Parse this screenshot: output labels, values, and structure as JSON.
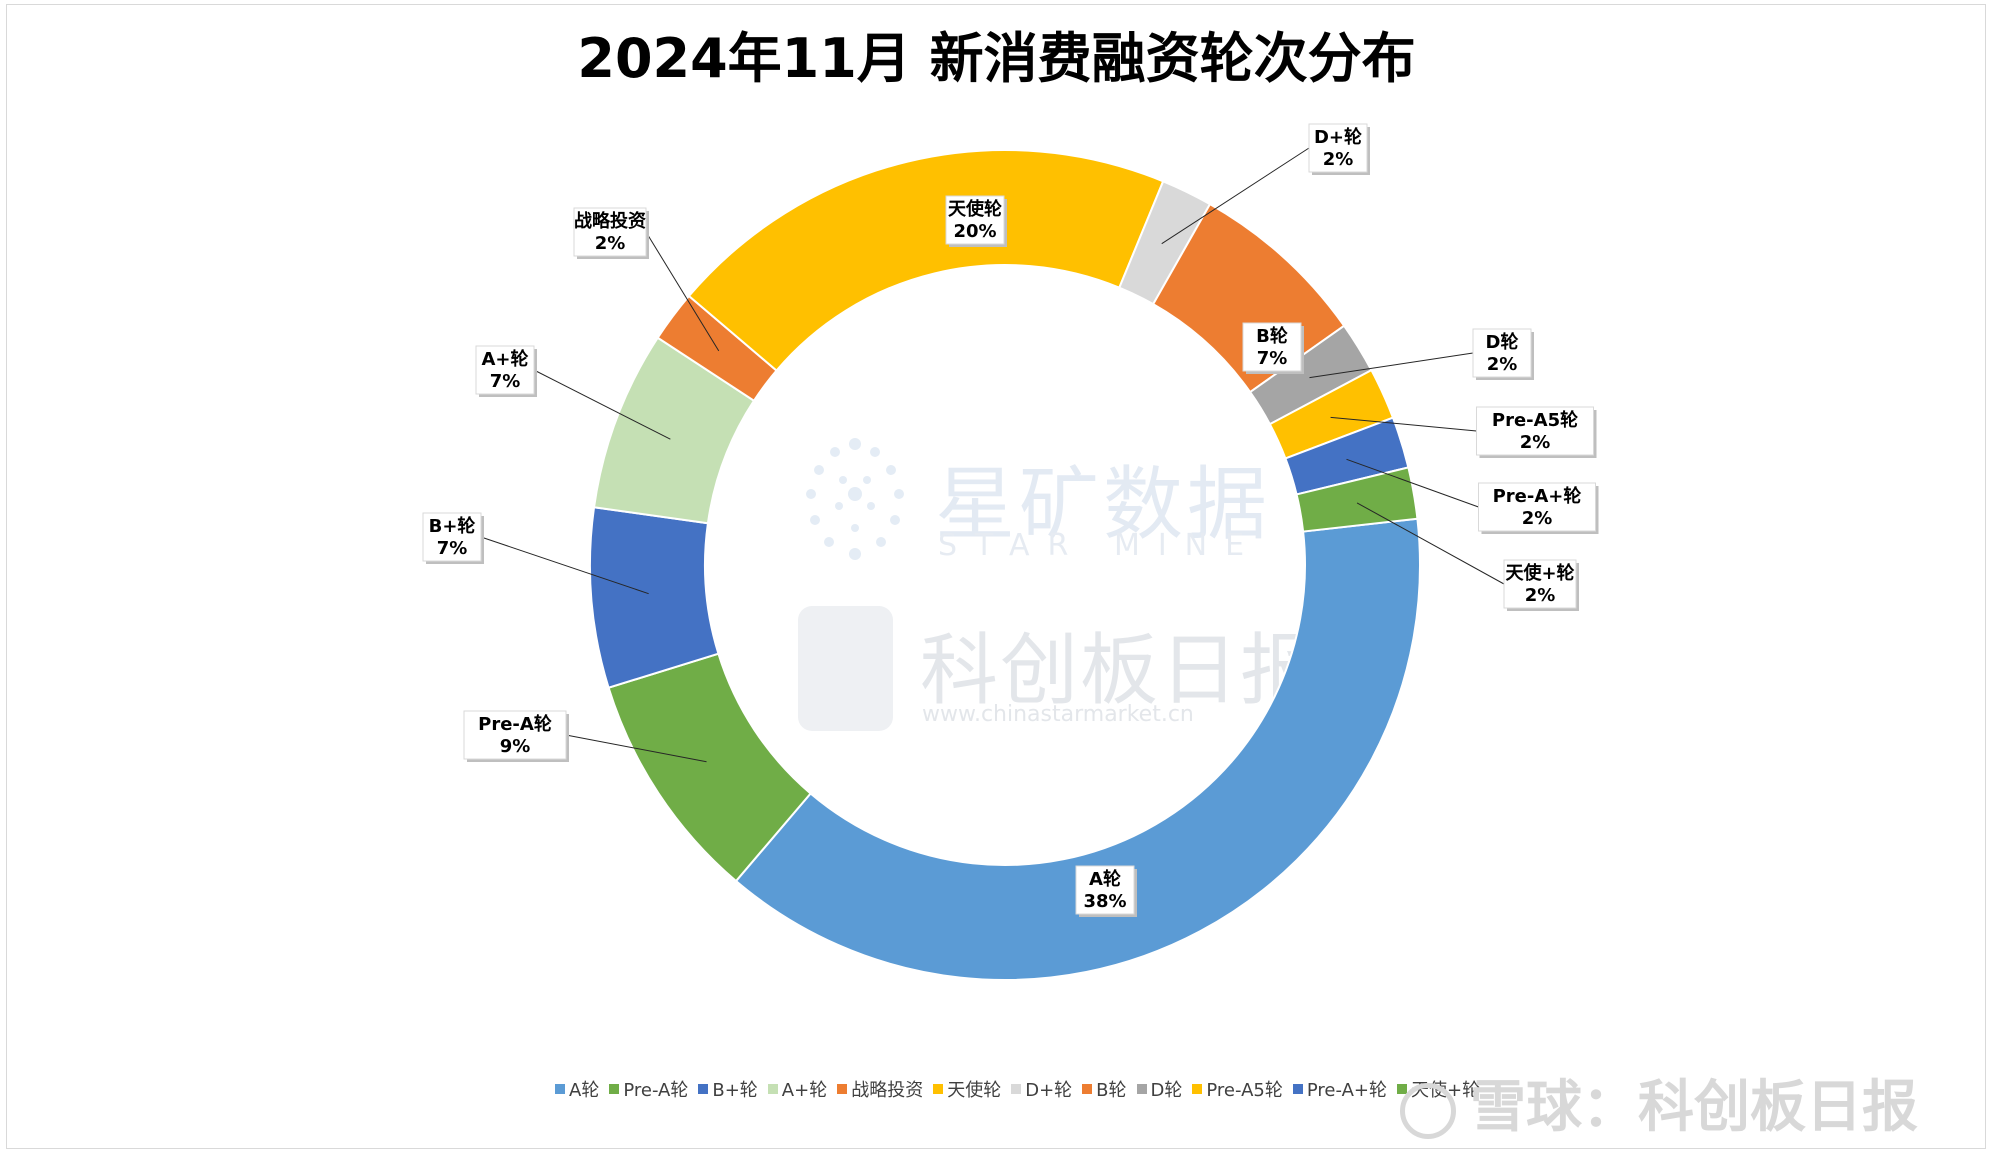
{
  "chart_data": {
    "type": "pie",
    "title": "2024年11月 新消费融资轮次分布",
    "slices": [
      {
        "label": "A轮",
        "value": 38,
        "value_label": "38%",
        "color": "#5b9bd5"
      },
      {
        "label": "Pre-A轮",
        "value": 9,
        "value_label": "9%",
        "color": "#70ad47"
      },
      {
        "label": "B+轮",
        "value": 7,
        "value_label": "7%",
        "color": "#4472c4"
      },
      {
        "label": "A+轮",
        "value": 7,
        "value_label": "7%",
        "color": "#c5e0b4"
      },
      {
        "label": "战略投资",
        "value": 2,
        "value_label": "2%",
        "color": "#ed7d31"
      },
      {
        "label": "天使轮",
        "value": 20,
        "value_label": "20%",
        "color": "#ffc000"
      },
      {
        "label": "D+轮",
        "value": 2,
        "value_label": "2%",
        "color": "#d9d9d9"
      },
      {
        "label": "B轮",
        "value": 7,
        "value_label": "7%",
        "color": "#ed7d31"
      },
      {
        "label": "D轮",
        "value": 2,
        "value_label": "2%",
        "color": "#a5a5a5"
      },
      {
        "label": "Pre-A5轮",
        "value": 2,
        "value_label": "2%",
        "color": "#ffc000"
      },
      {
        "label": "Pre-A+轮",
        "value": 2,
        "value_label": "2%",
        "color": "#4472c4"
      },
      {
        "label": "天使+轮",
        "value": 2,
        "value_label": "2%",
        "color": "#70ad47"
      }
    ],
    "legend_position": "bottom",
    "hole": true
  },
  "watermarks": {
    "brand_cn": "星矿数据",
    "brand_en": "STAR MINE",
    "publisher_cn": "科创板日报",
    "publisher_url": "www.chinastarmarket.cn",
    "xueqiu": "雪球：科创板日报"
  }
}
